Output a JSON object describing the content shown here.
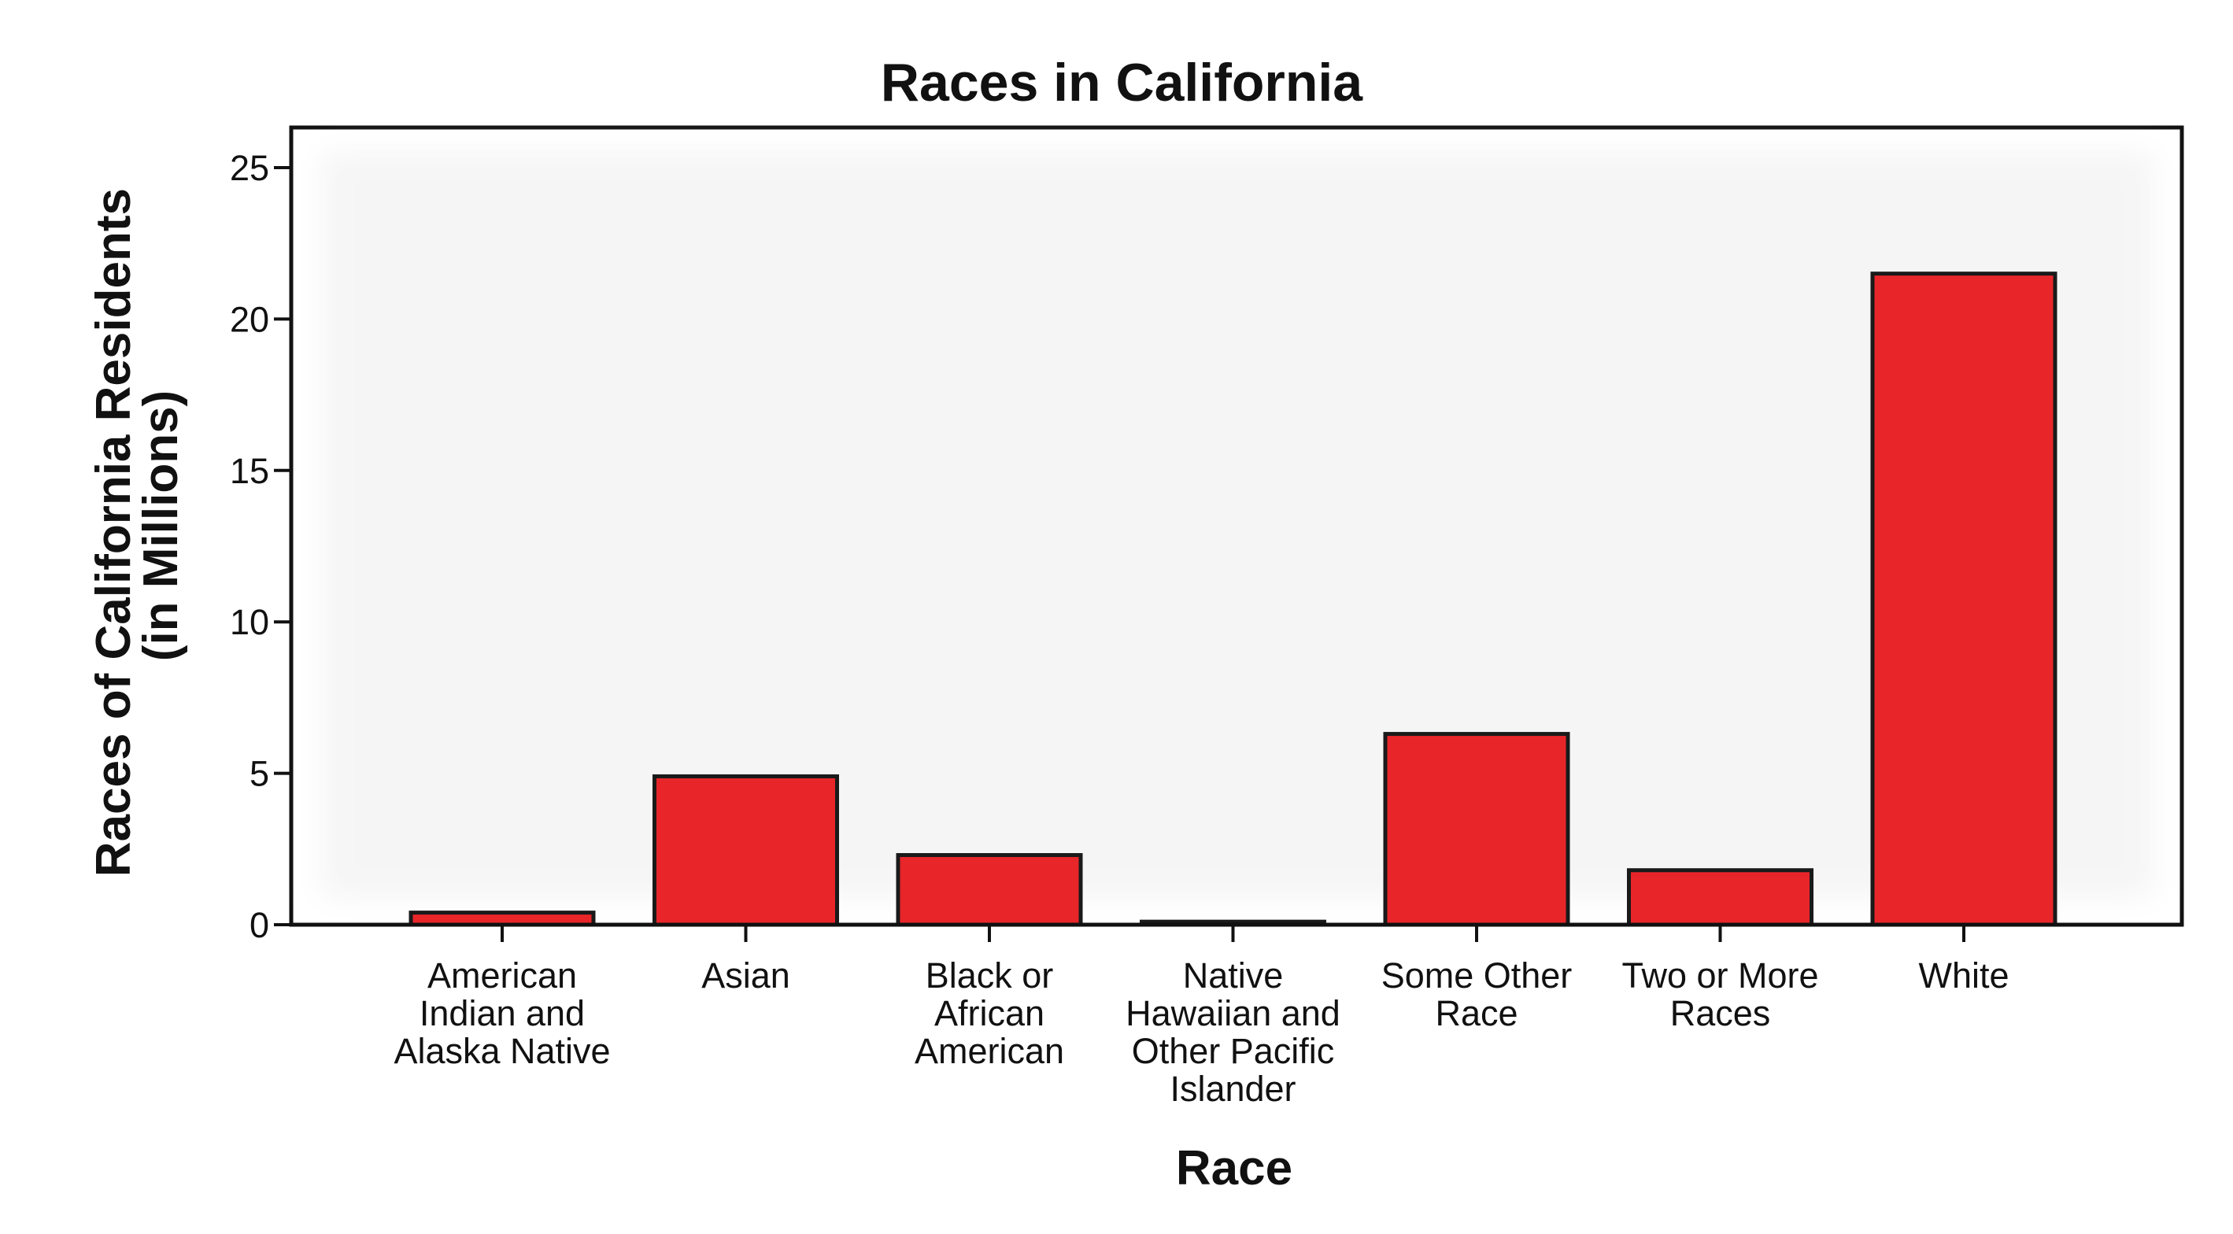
{
  "chart_data": {
    "type": "bar",
    "title": "Races in California",
    "xlabel": "Race",
    "ylabel": [
      "Races of California Residents",
      "(in Millions)"
    ],
    "categories": [
      [
        "American",
        "Indian and",
        "Alaska Native"
      ],
      [
        "Asian"
      ],
      [
        "Black or",
        "African",
        "American"
      ],
      [
        "Native",
        "Hawaiian and",
        "Other Pacific",
        "Islander"
      ],
      [
        "Some Other",
        "Race"
      ],
      [
        "Two or More",
        "Races"
      ],
      [
        "White"
      ]
    ],
    "values": [
      0.4,
      4.9,
      2.3,
      0.1,
      6.3,
      1.8,
      21.5
    ],
    "ylim": [
      0,
      25
    ],
    "yticks": [
      "0",
      "5",
      "10",
      "15",
      "20",
      "25"
    ],
    "ytick_values": [
      0,
      5,
      10,
      15,
      20,
      25
    ],
    "bar_color": "#e8262a",
    "grid": false,
    "legend": "none"
  }
}
